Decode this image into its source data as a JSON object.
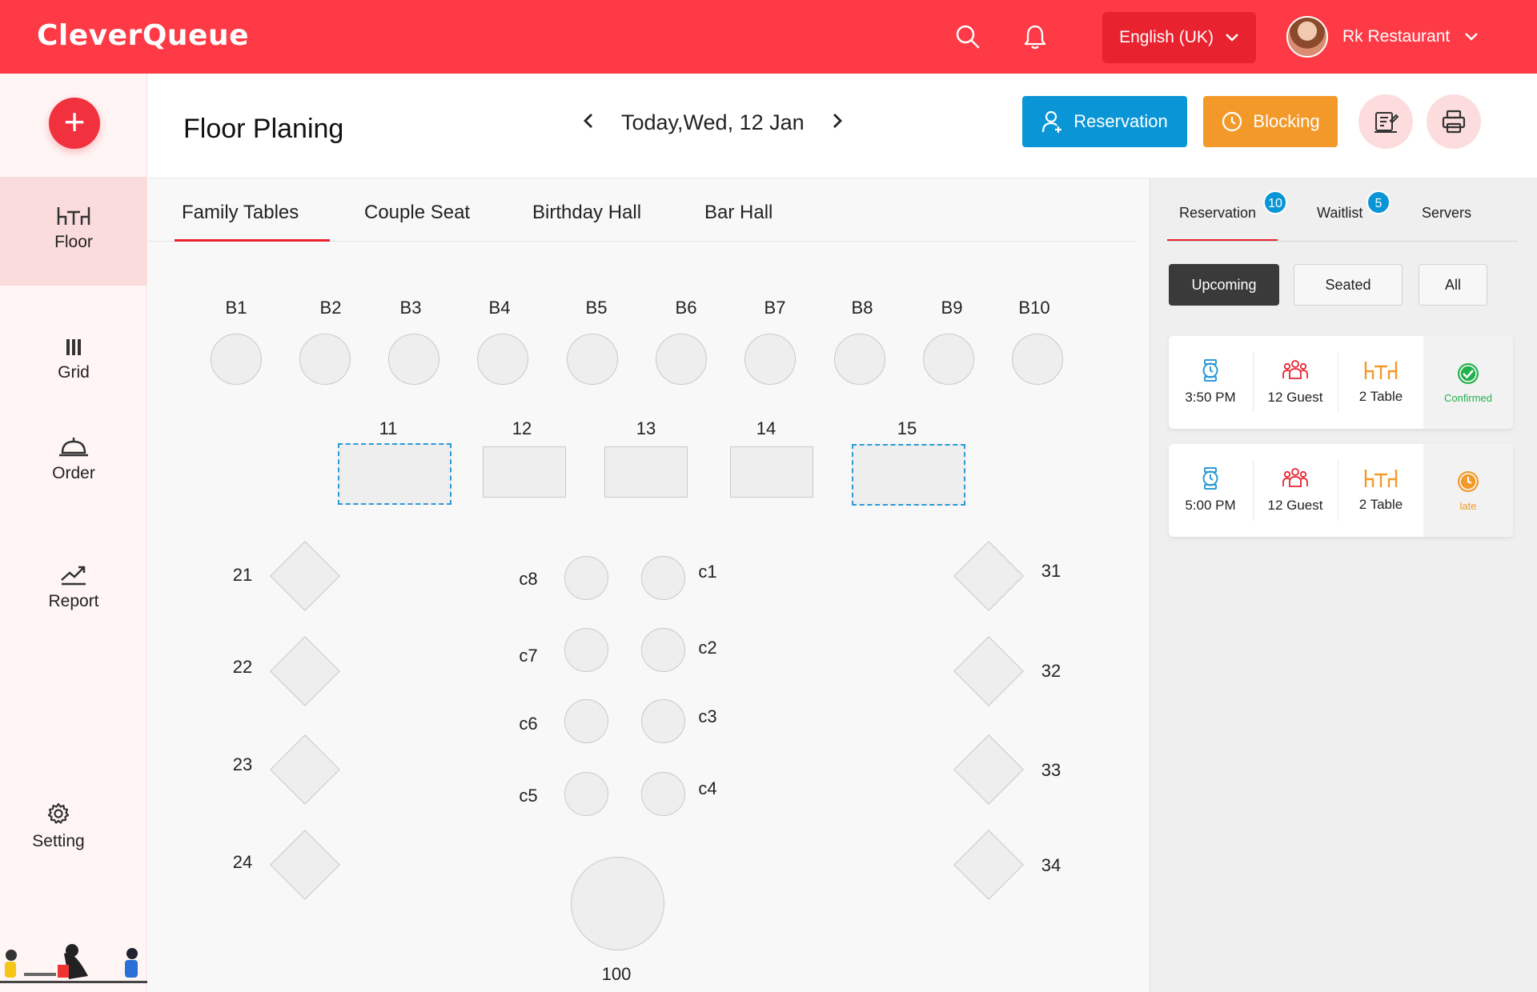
{
  "app": {
    "logo": "CleverQueue"
  },
  "topbar": {
    "language": "English (UK)",
    "user_name": "Rk Restaurant"
  },
  "sidebar": {
    "items": [
      {
        "label": "Floor",
        "icon": "table-icon"
      },
      {
        "label": "Grid",
        "icon": "grid-icon"
      },
      {
        "label": "Order",
        "icon": "cloche-icon"
      },
      {
        "label": "Report",
        "icon": "trend-icon"
      },
      {
        "label": "Setting",
        "icon": "gear-icon"
      }
    ]
  },
  "header": {
    "title": "Floor Planing",
    "date": "Today,Wed, 12 Jan",
    "reservation_btn": "Reservation",
    "blocking_btn": "Blocking"
  },
  "floor_tabs": [
    "Family Tables",
    "Couple Seat",
    "Birthday Hall",
    "Bar Hall"
  ],
  "tables": {
    "b_row": [
      "B1",
      "B2",
      "B3",
      "B4",
      "B5",
      "B6",
      "B7",
      "B8",
      "B9",
      "B10"
    ],
    "rect_row": [
      "11",
      "12",
      "13",
      "14",
      "15"
    ],
    "left_diamonds": [
      "21",
      "22",
      "23",
      "24"
    ],
    "right_diamonds": [
      "31",
      "32",
      "33",
      "34"
    ],
    "couple_left": [
      "c8",
      "c7",
      "c6",
      "c5"
    ],
    "couple_right": [
      "c1",
      "c2",
      "c3",
      "c4"
    ],
    "big_round": "100"
  },
  "right_panel": {
    "tabs": [
      {
        "label": "Reservation",
        "badge": "10"
      },
      {
        "label": "Waitlist",
        "badge": "5"
      },
      {
        "label": "Servers",
        "badge": ""
      }
    ],
    "filters": [
      "Upcoming",
      "Seated",
      "All"
    ],
    "cards": [
      {
        "time": "3:50 PM",
        "guests": "12 Guest",
        "tables": "2 Table",
        "status": "Confirmed",
        "status_color": "#22b14c"
      },
      {
        "time": "5:00 PM",
        "guests": "12 Guest",
        "tables": "2 Table",
        "status": "late",
        "status_color": "#f3992a"
      }
    ]
  },
  "colors": {
    "brand": "#fd3a46",
    "reservation": "#0a96d6",
    "blocking": "#f3992a"
  }
}
